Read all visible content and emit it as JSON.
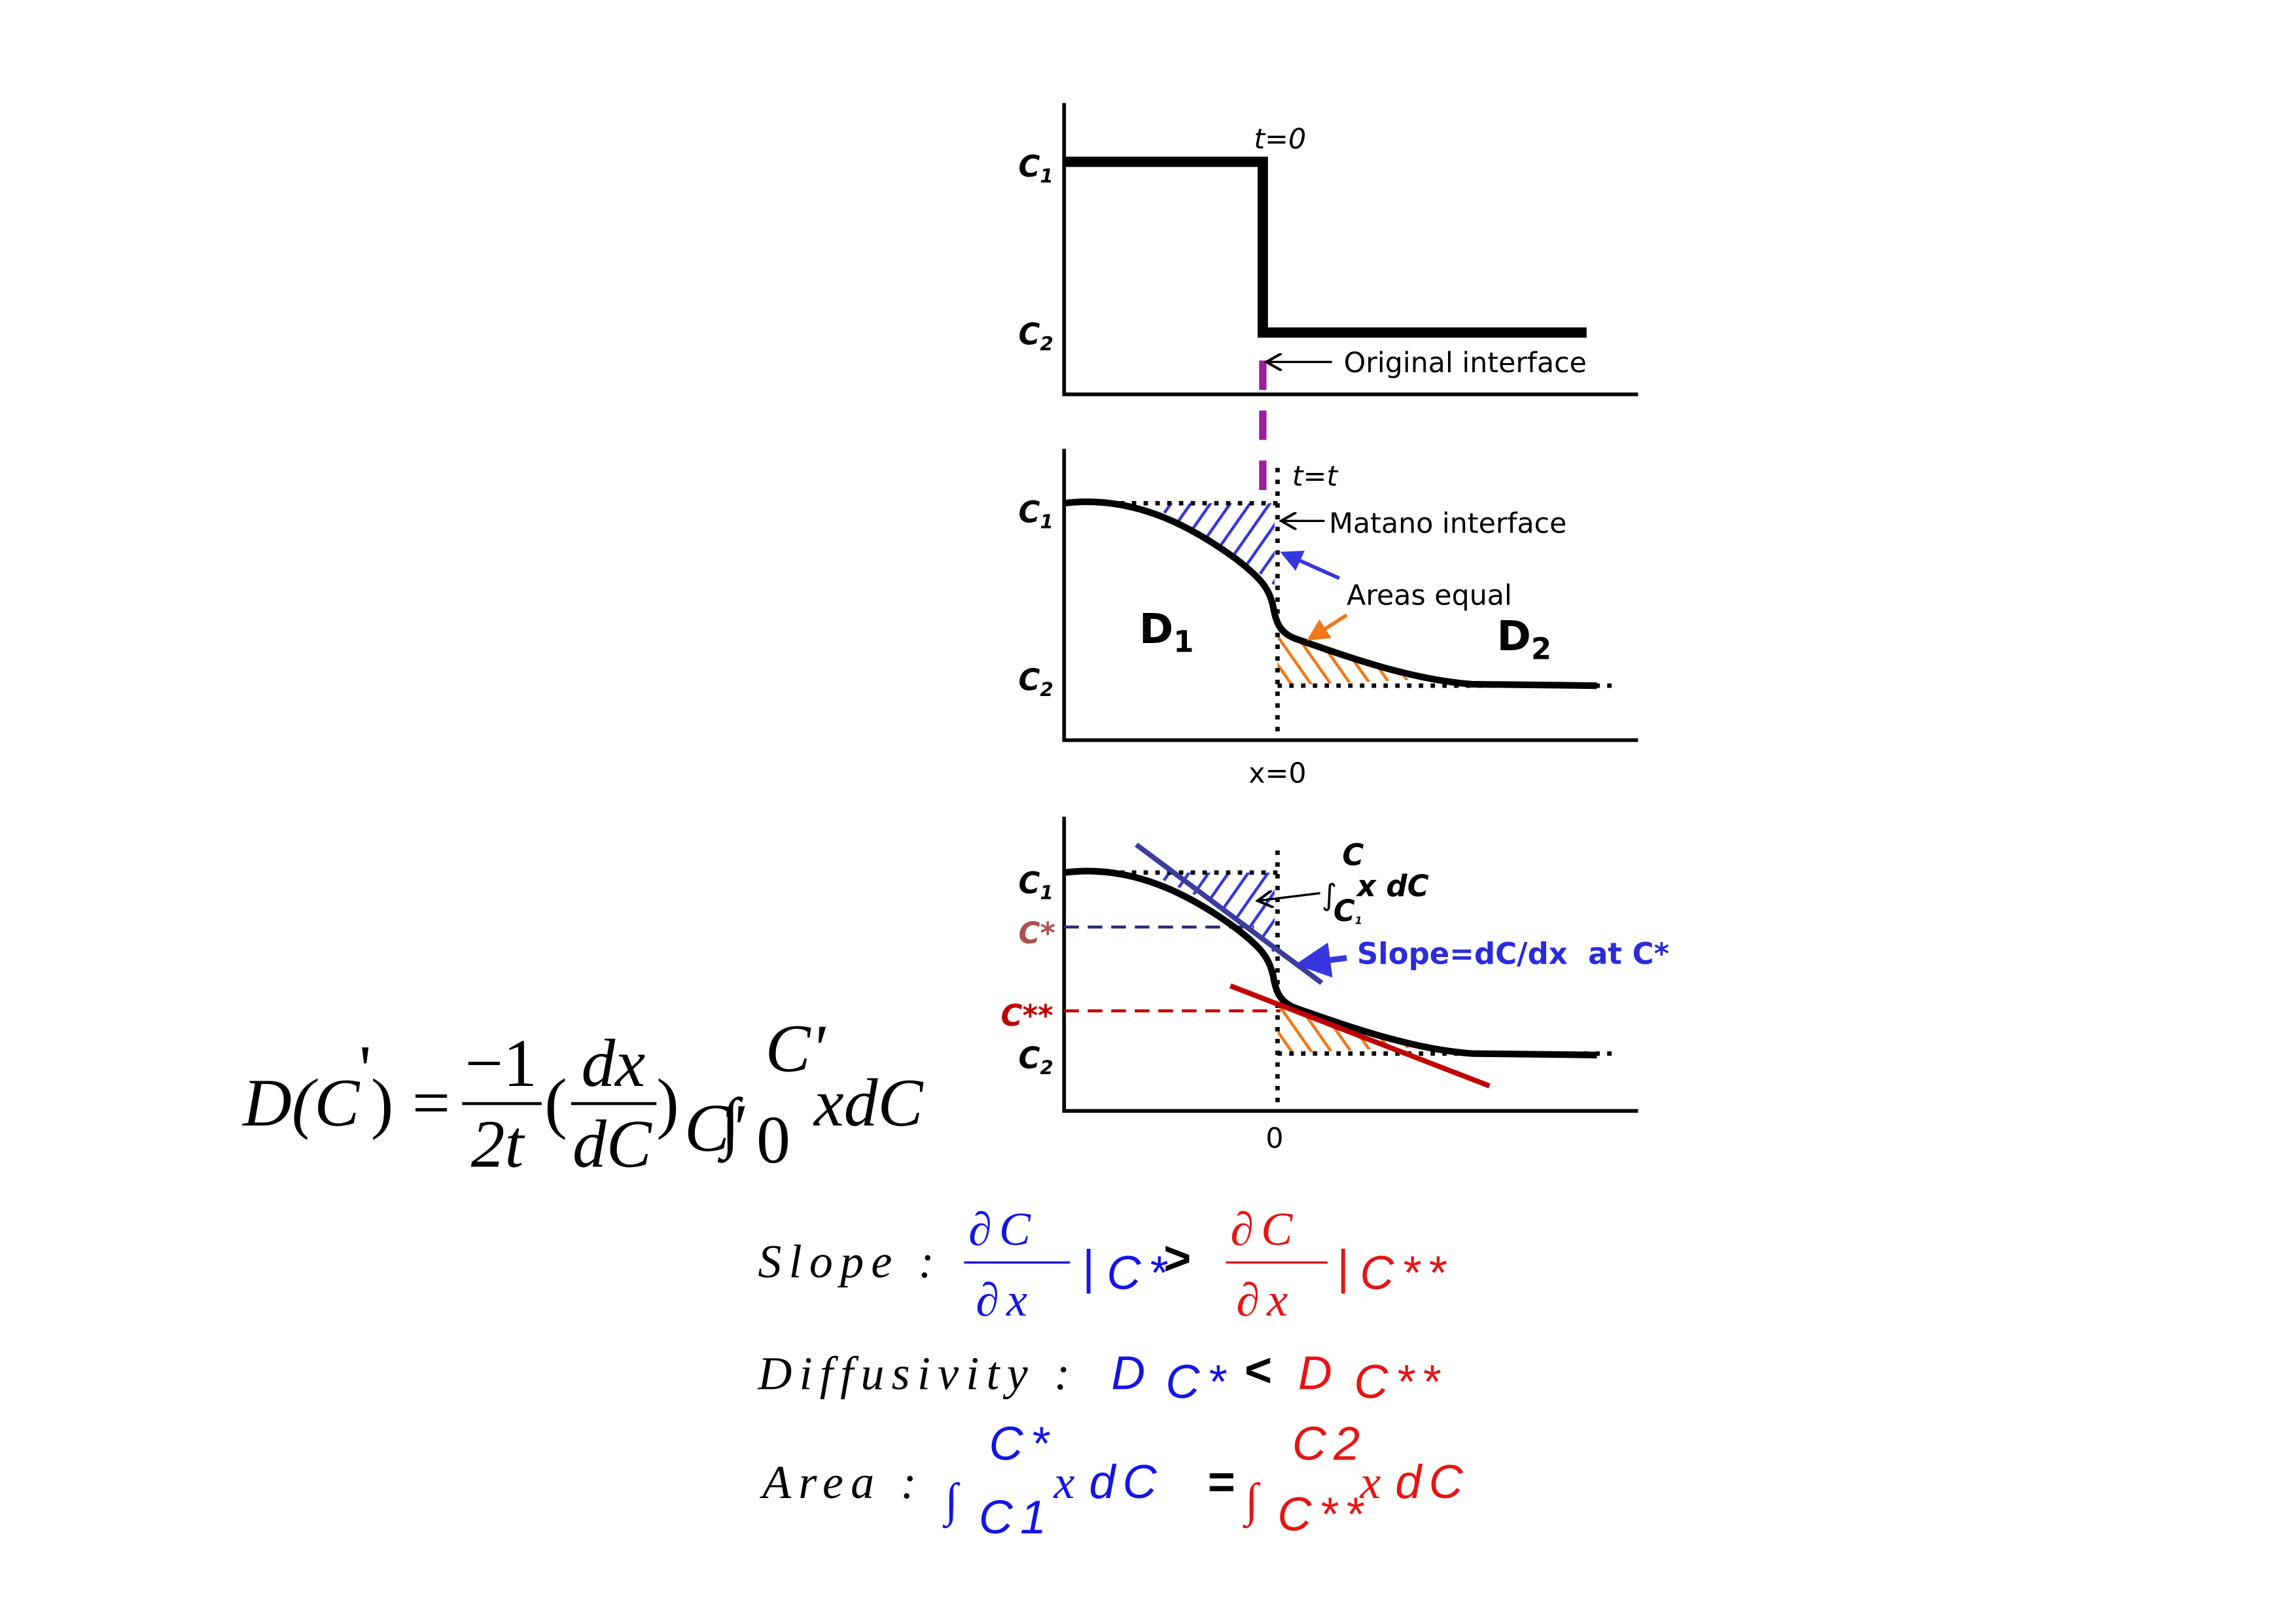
{
  "top_panel": {
    "t_label": "t=0",
    "c1": {
      "c": "C",
      "sub": "1"
    },
    "c2": {
      "c": "C",
      "sub": "2"
    },
    "interface_label": "Original interface"
  },
  "middle_panel": {
    "t_label": "t=t",
    "c1": {
      "c": "C",
      "sub": "1"
    },
    "c2": {
      "c": "C",
      "sub": "2"
    },
    "interface_label": "Matano interface",
    "areas_label": "Areas equal",
    "d1": {
      "d": "D",
      "sub": "1"
    },
    "d2": {
      "d": "D",
      "sub": "2"
    },
    "x_label": "x=0"
  },
  "bottom_panel": {
    "c1": {
      "c": "C",
      "sub": "1"
    },
    "c_star": "C*",
    "c_star_star": "C**",
    "c2": {
      "c": "C",
      "sub": "2"
    },
    "integral": {
      "sign": "∫",
      "upper": "C",
      "lower": {
        "c": "C",
        "sub": "1"
      },
      "integrand": "x dC"
    },
    "slope_label": "Slope=dC/dx  at C*",
    "x_label": "0"
  },
  "formula": {
    "lhs": "D(C",
    "lhs_prime": "'",
    "lhs_close": ")",
    "equals": "=",
    "numerator": "−1",
    "denominator": "2t",
    "open": "(",
    "dx": "dx",
    "dC": "dC",
    "close": ")",
    "eval_sub": "C'",
    "integral": "∫",
    "lower": "0",
    "upper": "C'",
    "integrand": "xdC"
  },
  "relations": {
    "slope": {
      "label": "Slope :",
      "left": {
        "num": "∂C",
        "den": "∂x",
        "bar": "|",
        "at": "C*"
      },
      "op": ">",
      "right": {
        "num": "∂C",
        "den": "∂x",
        "bar": "|",
        "at": "C**"
      }
    },
    "diffusivity": {
      "label": "Diffusivity :",
      "left": {
        "d": "D",
        "at": "C*"
      },
      "op": "<",
      "right": {
        "d": "D",
        "at": "C**"
      }
    },
    "area": {
      "label": "Area :",
      "left": {
        "sign": "∫",
        "upper": "C*",
        "lower": "C1",
        "x": "x",
        "dc": "dC"
      },
      "op": "=",
      "right": {
        "sign": "∫",
        "upper": "C2",
        "lower": "C**",
        "x": "x",
        "dc": "dC"
      }
    }
  }
}
